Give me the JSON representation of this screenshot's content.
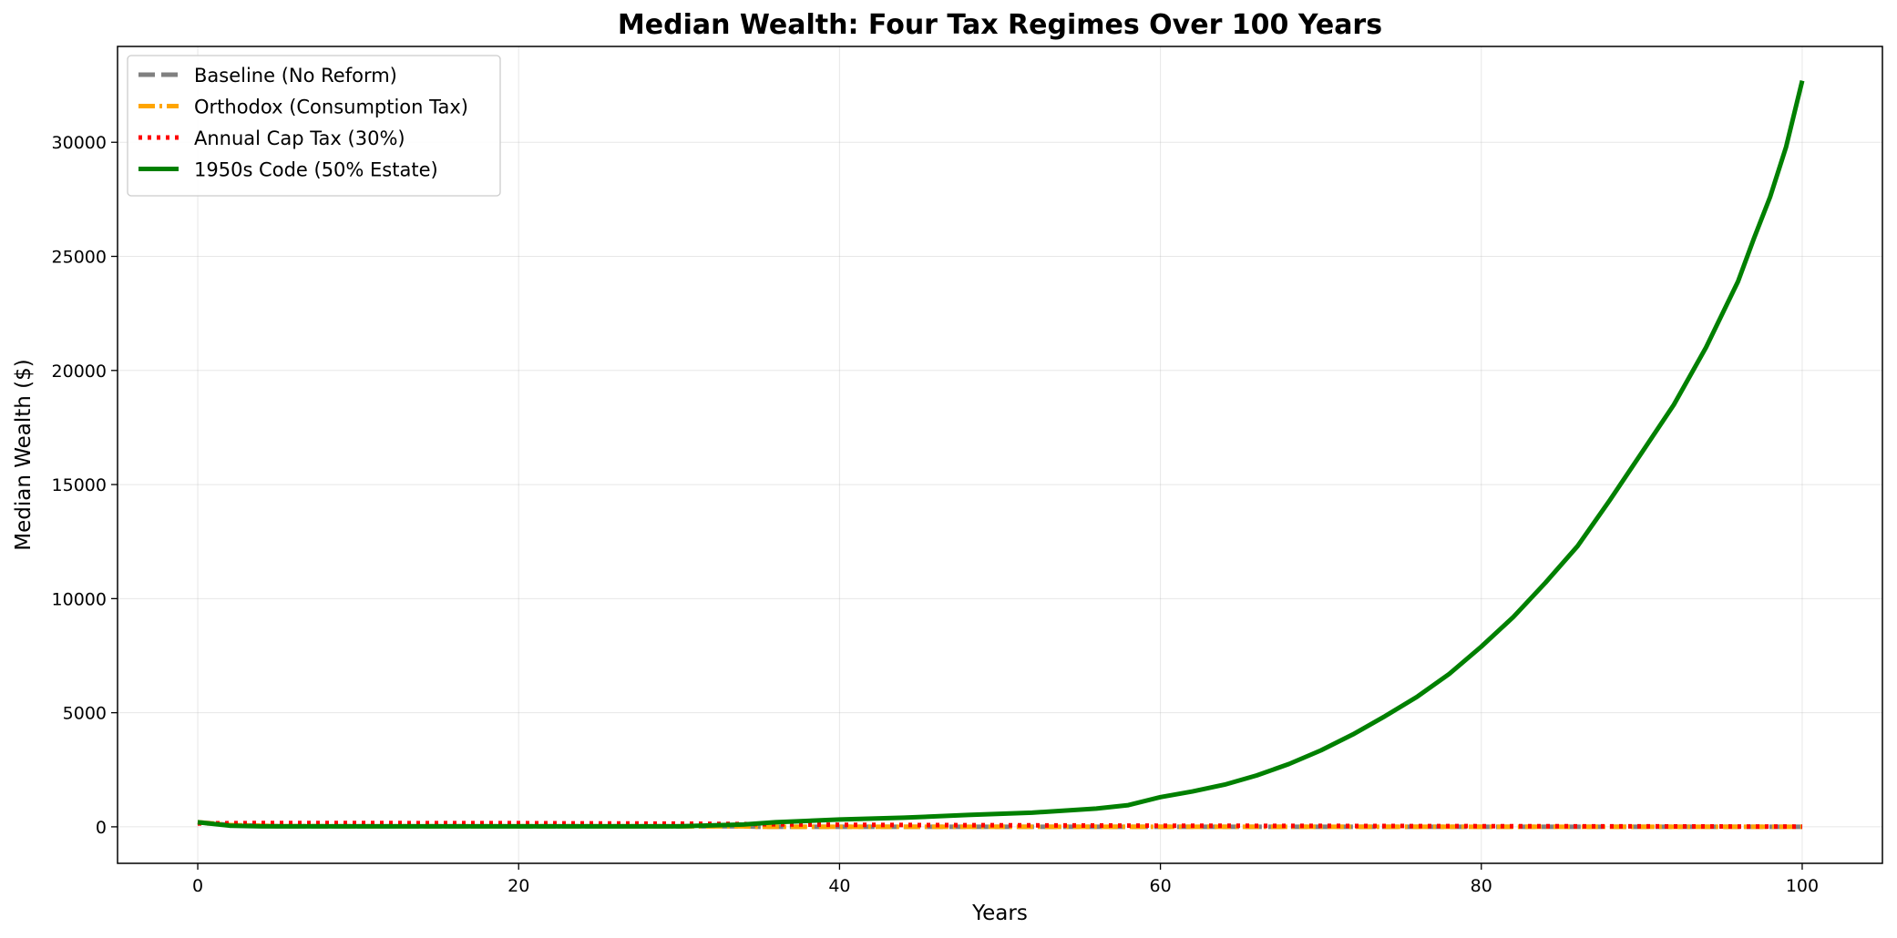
{
  "chart_data": {
    "type": "line",
    "title": "Median Wealth: Four Tax Regimes Over 100 Years",
    "xlabel": "Years",
    "ylabel": "Median Wealth ($)",
    "xlim": [
      -5,
      105
    ],
    "ylim": [
      -1600,
      34200
    ],
    "xticks": [
      0,
      20,
      40,
      60,
      80,
      100
    ],
    "yticks": [
      0,
      5000,
      10000,
      15000,
      20000,
      25000,
      30000
    ],
    "grid": true,
    "legend_position": "upper left",
    "series": [
      {
        "name": "Baseline (No Reform)",
        "color": "#808080",
        "style": "dashed",
        "x": [
          0,
          2,
          5,
          10,
          20,
          30,
          34,
          35,
          40,
          50,
          60,
          70,
          80,
          90,
          100
        ],
        "y": [
          200,
          80,
          30,
          20,
          20,
          20,
          20,
          0,
          0,
          0,
          0,
          0,
          0,
          0,
          0
        ]
      },
      {
        "name": "Orthodox (Consumption Tax)",
        "color": "#ffa500",
        "style": "dashdot",
        "x": [
          0,
          2,
          5,
          10,
          20,
          30,
          34,
          35,
          40,
          50,
          60,
          70,
          80,
          90,
          100
        ],
        "y": [
          200,
          80,
          30,
          20,
          20,
          20,
          20,
          0,
          0,
          0,
          0,
          0,
          0,
          0,
          0
        ]
      },
      {
        "name": "Annual Cap Tax (30%)",
        "color": "#ff0000",
        "style": "dotted",
        "x": [
          0,
          2,
          5,
          10,
          15,
          20,
          25,
          30,
          34,
          40,
          50,
          60,
          70,
          80,
          90,
          100
        ],
        "y": [
          150,
          160,
          170,
          170,
          160,
          160,
          150,
          140,
          120,
          90,
          70,
          50,
          40,
          30,
          20,
          10
        ]
      },
      {
        "name": "1950s Code (50% Estate)",
        "color": "#008000",
        "style": "solid",
        "x": [
          0,
          2,
          4,
          6,
          10,
          20,
          30,
          34,
          36,
          40,
          44,
          48,
          52,
          56,
          58,
          60,
          62,
          64,
          66,
          68,
          70,
          72,
          74,
          76,
          78,
          80,
          82,
          84,
          86,
          88,
          90,
          92,
          94,
          96,
          97,
          98,
          99,
          100
        ],
        "y": [
          200,
          50,
          20,
          20,
          20,
          20,
          20,
          100,
          200,
          320,
          400,
          520,
          620,
          800,
          950,
          1300,
          1550,
          1850,
          2250,
          2750,
          3350,
          4050,
          4850,
          5700,
          6700,
          7900,
          9200,
          10700,
          12300,
          14300,
          16400,
          18500,
          21000,
          23900,
          25800,
          27600,
          29800,
          32700
        ]
      }
    ]
  }
}
